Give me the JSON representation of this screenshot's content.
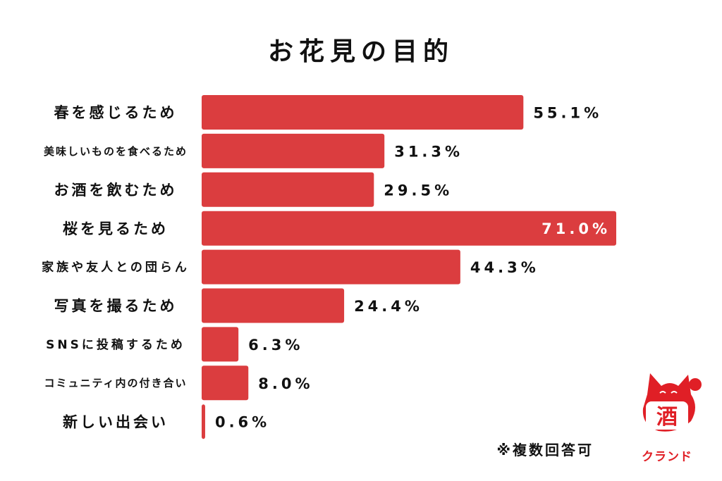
{
  "chart_data": {
    "type": "bar",
    "orientation": "horizontal",
    "title": "お花見の目的",
    "categories": [
      "春を感じるため",
      "美味しいものを食べるため",
      "お酒を飲むため",
      "桜を見るため",
      "家族や友人との団らん",
      "写真を撮るため",
      "SNSに投稿するため",
      "コミュニティ内の付き合い",
      "新しい出会い"
    ],
    "values": [
      55.1,
      31.3,
      29.5,
      71.0,
      44.3,
      24.4,
      6.3,
      8.0,
      0.6
    ],
    "value_labels": [
      "55.1%",
      "31.3%",
      "29.5%",
      "71.0%",
      "44.3%",
      "24.4%",
      "6.3%",
      "8.0%",
      "0.6%"
    ],
    "xlim": [
      0,
      71.0
    ],
    "grid": false,
    "bar_color": "#db3d3f",
    "note": "※複数回答可"
  },
  "logo": {
    "kanji": "酒",
    "name": "クランド",
    "color": "#e01f26"
  }
}
